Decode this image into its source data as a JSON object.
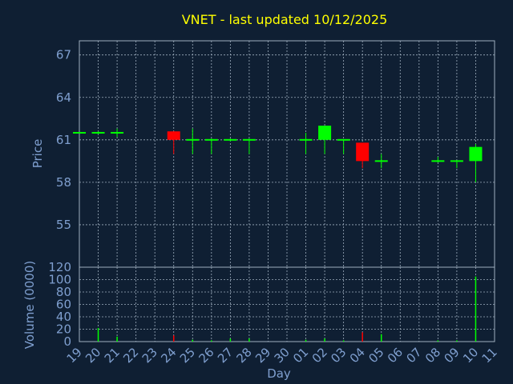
{
  "chart_data": {
    "type": "candlestick",
    "title": "VNET - last updated 10/12/2025",
    "ylabel": "Price",
    "y2label": "Volume (0000)",
    "xlabel": "Day",
    "x": [
      "19",
      "20",
      "21",
      "22",
      "23",
      "24",
      "25",
      "26",
      "27",
      "28",
      "29",
      "30",
      "01",
      "02",
      "03",
      "04",
      "05",
      "06",
      "07",
      "08",
      "09",
      "10",
      "11"
    ],
    "open": [
      61.5,
      61.5,
      61.5,
      null,
      null,
      61.6,
      61.0,
      61.0,
      61.0,
      61.0,
      null,
      null,
      61.0,
      61.0,
      61.0,
      60.8,
      59.5,
      null,
      null,
      59.5,
      59.5,
      59.5,
      null
    ],
    "high": [
      61.5,
      61.6,
      61.8,
      null,
      null,
      61.6,
      61.8,
      61.1,
      61.1,
      61.1,
      null,
      null,
      61.5,
      62.0,
      61.0,
      60.8,
      60.0,
      null,
      null,
      59.8,
      59.5,
      60.7,
      null
    ],
    "low": [
      61.5,
      61.4,
      61.2,
      null,
      null,
      60.0,
      60.0,
      60.0,
      60.9,
      60.0,
      null,
      null,
      60.0,
      60.0,
      60.0,
      59.0,
      59.0,
      null,
      null,
      59.4,
      59.0,
      58.0,
      null
    ],
    "close": [
      61.5,
      61.5,
      61.5,
      null,
      null,
      61.0,
      61.0,
      61.0,
      61.0,
      61.0,
      null,
      null,
      61.0,
      62.0,
      61.0,
      59.5,
      59.5,
      null,
      null,
      59.5,
      59.5,
      60.5,
      null
    ],
    "volume": [
      0,
      22,
      8,
      null,
      null,
      10,
      3,
      2,
      5,
      5,
      null,
      null,
      3,
      5,
      2,
      15,
      12,
      null,
      null,
      2,
      2,
      105,
      null
    ],
    "up_color": "#00ff00",
    "down_color": "#ff0000",
    "ylim": [
      52,
      68
    ],
    "yticks": [
      55,
      58,
      61,
      64,
      67
    ],
    "y2lim": [
      0,
      120
    ],
    "y2ticks": [
      0,
      20,
      40,
      60,
      80,
      100,
      120
    ],
    "grid": true
  }
}
